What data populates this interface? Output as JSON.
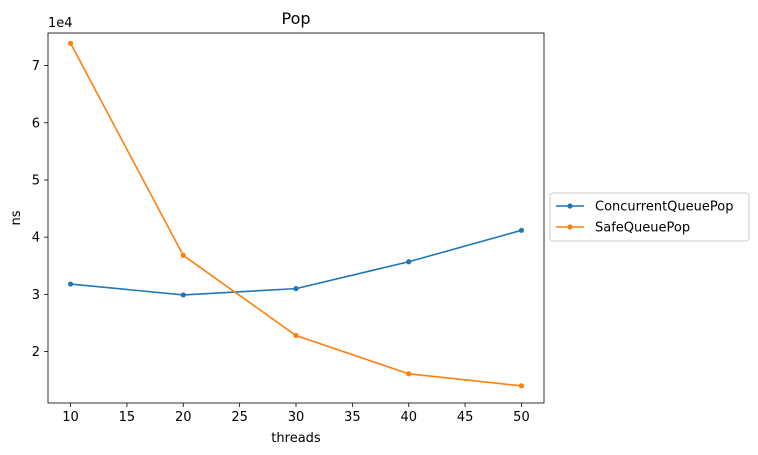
{
  "chart_data": {
    "type": "line",
    "title": "Pop",
    "xlabel": "threads",
    "ylabel": "ns",
    "y_offset_label": "1e4",
    "x": [
      10,
      20,
      30,
      40,
      50
    ],
    "xlim": [
      8,
      52
    ],
    "ylim": [
      11000,
      75700
    ],
    "xticks": [
      10,
      15,
      20,
      25,
      30,
      35,
      40,
      45,
      50
    ],
    "yticks": [
      20000,
      30000,
      40000,
      50000,
      60000,
      70000
    ],
    "ytick_labels": [
      "2",
      "3",
      "4",
      "5",
      "6",
      "7"
    ],
    "grid": false,
    "legend_position": "outside-right",
    "series": [
      {
        "name": "ConcurrentQueuePop",
        "color": "#1f77b4",
        "values": [
          31800,
          29900,
          31000,
          35700,
          41200
        ]
      },
      {
        "name": "SafeQueuePop",
        "color": "#ff7f0e",
        "values": [
          73900,
          36800,
          22800,
          16100,
          14000
        ]
      }
    ]
  }
}
